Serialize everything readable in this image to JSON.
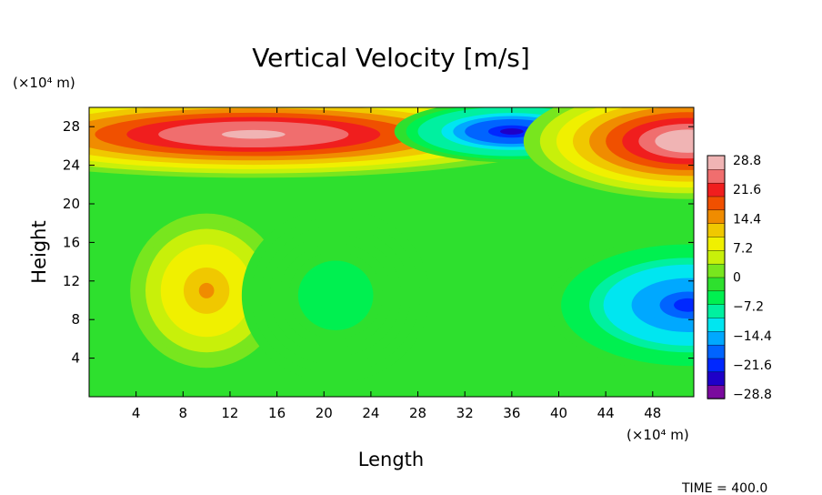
{
  "chart_data": {
    "type": "heatmap",
    "title": "Vertical Velocity [m/s]",
    "xlabel": "Length",
    "ylabel": "Height",
    "x_unit": "(×10⁴ m)",
    "y_unit": "(×10⁴ m)",
    "x_ticks": [
      "4",
      "8",
      "12",
      "16",
      "20",
      "24",
      "28",
      "32",
      "36",
      "40",
      "44",
      "48"
    ],
    "y_ticks": [
      "4",
      "8",
      "12",
      "16",
      "20",
      "24",
      "28"
    ],
    "xlim": [
      0,
      51.5
    ],
    "ylim": [
      0,
      30
    ],
    "colorbar": {
      "labels": [
        "28.8",
        "21.6",
        "14.4",
        "7.2",
        "0",
        "-7.2",
        "-14.4",
        "-21.6",
        "-28.8"
      ],
      "range": [
        -28.8,
        28.8
      ]
    },
    "features": [
      {
        "x": 14,
        "y": 27.2,
        "value": 28.0
      },
      {
        "x": 10,
        "y": 11,
        "value": 13.0
      },
      {
        "x": 36,
        "y": 27.5,
        "value": -24.0
      },
      {
        "x": 51,
        "y": 26.5,
        "value": 28.8
      },
      {
        "x": 51,
        "y": 9.5,
        "value": -20.0
      },
      {
        "x": 21,
        "y": 10.5,
        "value": -5.0
      }
    ],
    "annotation": "TIME = 400.0"
  }
}
